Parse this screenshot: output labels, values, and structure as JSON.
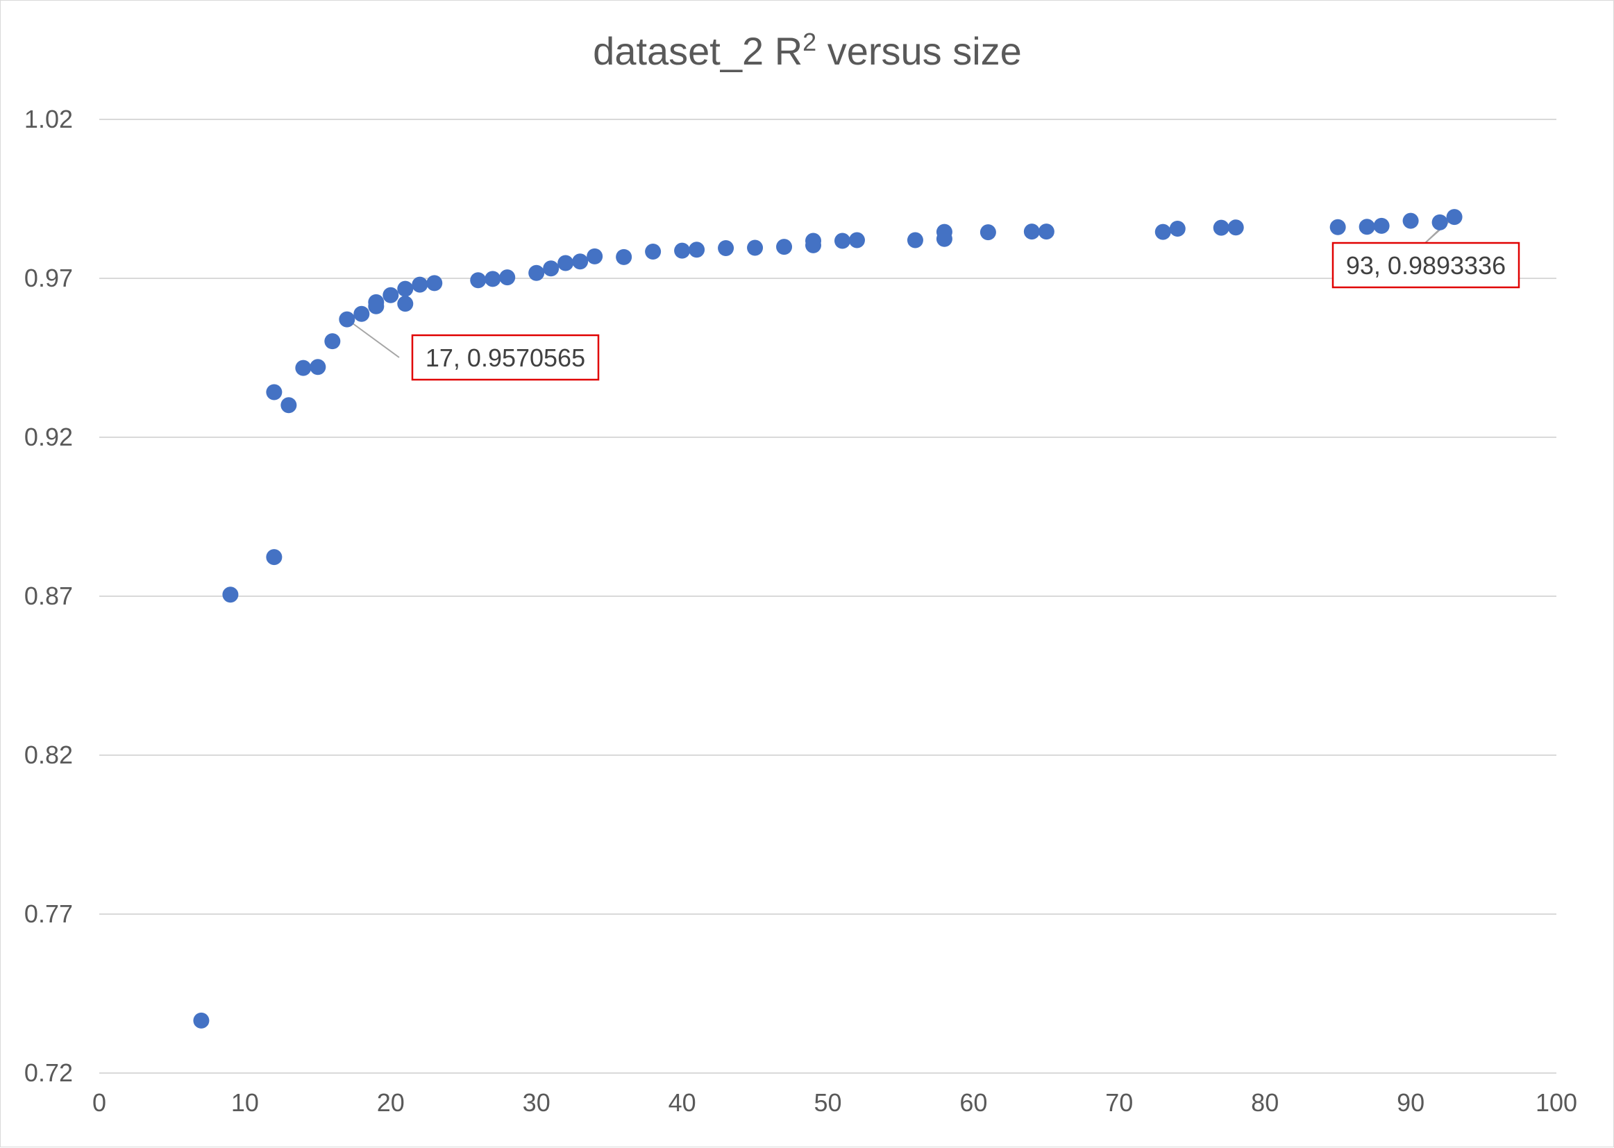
{
  "chart_data": {
    "type": "scatter",
    "title": "dataset_2 R",
    "title_superscript": "2",
    "title_suffix": " versus size",
    "xlabel": "",
    "ylabel": "",
    "xlim": [
      0,
      100
    ],
    "ylim": [
      0.72,
      1.02
    ],
    "x_ticks": [
      "0",
      "10",
      "20",
      "30",
      "40",
      "50",
      "60",
      "70",
      "80",
      "90",
      "100"
    ],
    "y_ticks": [
      "0.72",
      "0.77",
      "0.82",
      "0.87",
      "0.92",
      "0.97",
      "1.02"
    ],
    "grid": "horizontal",
    "legend": "none",
    "marker_color": "#4472c4",
    "callout_border_color": "#e00000",
    "series": [
      {
        "points": [
          [
            7,
            0.7365
          ],
          [
            9,
            0.8705
          ],
          [
            12,
            0.8823
          ],
          [
            12,
            0.9342
          ],
          [
            13,
            0.9301
          ],
          [
            14,
            0.9418
          ],
          [
            15,
            0.9421
          ],
          [
            16,
            0.9502
          ],
          [
            17,
            0.9571
          ],
          [
            18,
            0.9588
          ],
          [
            19,
            0.9612
          ],
          [
            19,
            0.9625
          ],
          [
            20,
            0.9647
          ],
          [
            21,
            0.9667
          ],
          [
            21,
            0.962
          ],
          [
            22,
            0.968
          ],
          [
            23,
            0.9685
          ],
          [
            26,
            0.9694
          ],
          [
            27,
            0.9698
          ],
          [
            28,
            0.9703
          ],
          [
            30,
            0.9717
          ],
          [
            31,
            0.9731
          ],
          [
            32,
            0.9748
          ],
          [
            33,
            0.9753
          ],
          [
            34,
            0.9769
          ],
          [
            36,
            0.9767
          ],
          [
            38,
            0.9784
          ],
          [
            40,
            0.9787
          ],
          [
            41,
            0.979
          ],
          [
            43,
            0.9795
          ],
          [
            45,
            0.9796
          ],
          [
            47,
            0.9799
          ],
          [
            49,
            0.9804
          ],
          [
            49,
            0.9818
          ],
          [
            51,
            0.9818
          ],
          [
            52,
            0.982
          ],
          [
            56,
            0.982
          ],
          [
            58,
            0.9824
          ],
          [
            58,
            0.9846
          ],
          [
            61,
            0.9845
          ],
          [
            64,
            0.9847
          ],
          [
            65,
            0.9847
          ],
          [
            73,
            0.9846
          ],
          [
            74,
            0.9856
          ],
          [
            77,
            0.9859
          ],
          [
            78,
            0.986
          ],
          [
            85,
            0.9861
          ],
          [
            87,
            0.9862
          ],
          [
            88,
            0.9865
          ],
          [
            90,
            0.9881
          ],
          [
            92,
            0.9876
          ],
          [
            93,
            0.9893
          ]
        ]
      }
    ],
    "annotations": [
      {
        "x": 17,
        "y": 0.9570565,
        "text": "17, 0.9570565"
      },
      {
        "x": 93,
        "y": 0.9893336,
        "text": "93, 0.9893336"
      }
    ]
  }
}
